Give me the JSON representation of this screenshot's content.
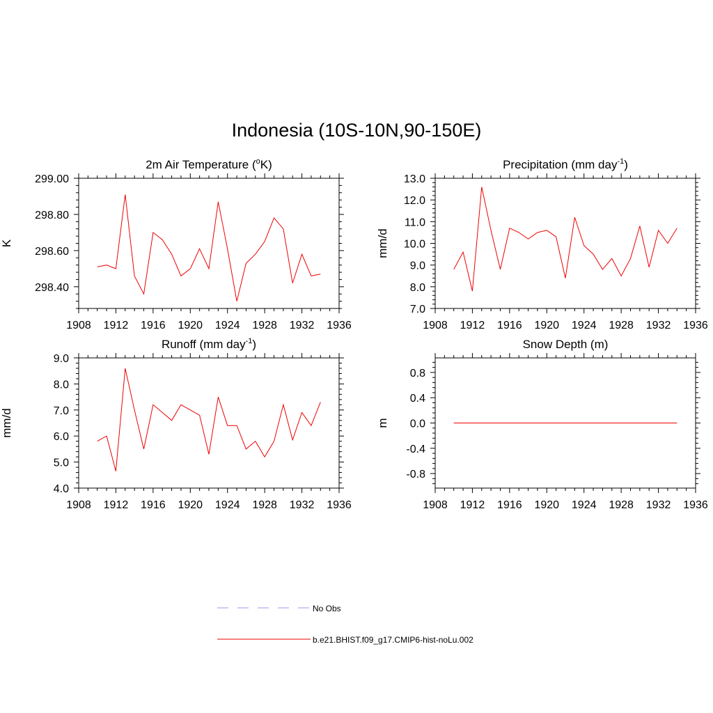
{
  "page": {
    "title": "Indonesia (10S-10N,90-150E)"
  },
  "legend": {
    "placement": "bottom-center",
    "entries": [
      {
        "label": "No Obs",
        "color": "#9999ee",
        "dash": "dashed"
      },
      {
        "label": "b.e21.BHIST.f09_g17.CMIP6-hist-noLu.002",
        "color": "#ee0000",
        "dash": "solid"
      }
    ]
  },
  "chart_data": [
    {
      "type": "line",
      "title": "2m Air Temperature (",
      "title_sup": "o",
      "title_end": "K)",
      "ylabel": "K",
      "xlim": [
        1908,
        1936
      ],
      "ylim": [
        298.28,
        299.0
      ],
      "xticks": [
        1908,
        1912,
        1916,
        1920,
        1924,
        1928,
        1932,
        1936
      ],
      "yticks": [
        298.4,
        298.6,
        298.8,
        299.0
      ],
      "ytick_labels": [
        "298.40",
        "298.60",
        "298.80",
        "299.00"
      ],
      "series": [
        {
          "color": "#ee0000",
          "x": [
            1910,
            1911,
            1912,
            1913,
            1914,
            1915,
            1916,
            1917,
            1918,
            1919,
            1920,
            1921,
            1922,
            1923,
            1924,
            1925,
            1926,
            1927,
            1928,
            1929,
            1930,
            1931,
            1932,
            1933,
            1934
          ],
          "values": [
            298.51,
            298.52,
            298.5,
            298.91,
            298.46,
            298.36,
            298.7,
            298.66,
            298.58,
            298.46,
            298.5,
            298.61,
            298.5,
            298.87,
            298.61,
            298.32,
            298.53,
            298.58,
            298.65,
            298.78,
            298.72,
            298.42,
            298.58,
            298.46,
            298.47
          ]
        }
      ]
    },
    {
      "type": "line",
      "title": "Precipitation (mm day",
      "title_sup": "-1",
      "title_end": ")",
      "ylabel": "mm/d",
      "xlim": [
        1908,
        1936
      ],
      "ylim": [
        7.0,
        13.0
      ],
      "xticks": [
        1908,
        1912,
        1916,
        1920,
        1924,
        1928,
        1932,
        1936
      ],
      "yticks": [
        7,
        8,
        9,
        10,
        11,
        12,
        13
      ],
      "ytick_labels": [
        "7.0",
        "8.0",
        "9.0",
        "10.0",
        "11.0",
        "12.0",
        "13.0"
      ],
      "series": [
        {
          "color": "#ee0000",
          "x": [
            1910,
            1911,
            1912,
            1913,
            1914,
            1915,
            1916,
            1917,
            1918,
            1919,
            1920,
            1921,
            1922,
            1923,
            1924,
            1925,
            1926,
            1927,
            1928,
            1929,
            1930,
            1931,
            1932,
            1933,
            1934
          ],
          "values": [
            8.8,
            9.6,
            7.8,
            12.6,
            10.6,
            8.8,
            10.7,
            10.5,
            10.2,
            10.5,
            10.6,
            10.3,
            8.4,
            11.2,
            9.9,
            9.5,
            8.8,
            9.3,
            8.5,
            9.3,
            10.8,
            8.9,
            10.6,
            10.0,
            10.7
          ]
        }
      ]
    },
    {
      "type": "line",
      "title": "Runoff (mm day",
      "title_sup": "-1",
      "title_end": ")",
      "ylabel": "mm/d",
      "xlim": [
        1908,
        1936
      ],
      "ylim": [
        4.0,
        9.0
      ],
      "xticks": [
        1908,
        1912,
        1916,
        1920,
        1924,
        1928,
        1932,
        1936
      ],
      "yticks": [
        4,
        5,
        6,
        7,
        8,
        9
      ],
      "ytick_labels": [
        "4.0",
        "5.0",
        "6.0",
        "7.0",
        "8.0",
        "9.0"
      ],
      "series": [
        {
          "color": "#ee0000",
          "x": [
            1910,
            1911,
            1912,
            1913,
            1914,
            1915,
            1916,
            1917,
            1918,
            1919,
            1920,
            1921,
            1922,
            1923,
            1924,
            1925,
            1926,
            1927,
            1928,
            1929,
            1930,
            1931,
            1932,
            1933,
            1934
          ],
          "values": [
            5.8,
            6.0,
            4.65,
            8.6,
            7.0,
            5.5,
            7.2,
            6.9,
            6.6,
            7.2,
            7.0,
            6.8,
            5.3,
            7.5,
            6.4,
            6.4,
            5.5,
            5.8,
            5.2,
            5.8,
            7.2,
            5.85,
            6.9,
            6.4,
            7.3
          ]
        }
      ]
    },
    {
      "type": "line",
      "title": "Snow Depth (m)",
      "title_sup": "",
      "title_end": "",
      "ylabel": "m",
      "xlim": [
        1908,
        1936
      ],
      "ylim": [
        -1.03,
        1.03
      ],
      "xticks": [
        1908,
        1912,
        1916,
        1920,
        1924,
        1928,
        1932,
        1936
      ],
      "yticks": [
        -0.8,
        -0.4,
        0.0,
        0.4,
        0.8
      ],
      "ytick_labels": [
        "-0.8",
        "-0.4",
        "0.0",
        "0.4",
        "0.8"
      ],
      "series": [
        {
          "color": "#ee0000",
          "x": [
            1910,
            1911,
            1912,
            1913,
            1914,
            1915,
            1916,
            1917,
            1918,
            1919,
            1920,
            1921,
            1922,
            1923,
            1924,
            1925,
            1926,
            1927,
            1928,
            1929,
            1930,
            1931,
            1932,
            1933,
            1934
          ],
          "values": [
            0,
            0,
            0,
            0,
            0,
            0,
            0,
            0,
            0,
            0,
            0,
            0,
            0,
            0,
            0,
            0,
            0,
            0,
            0,
            0,
            0,
            0,
            0,
            0,
            0
          ]
        }
      ]
    }
  ]
}
